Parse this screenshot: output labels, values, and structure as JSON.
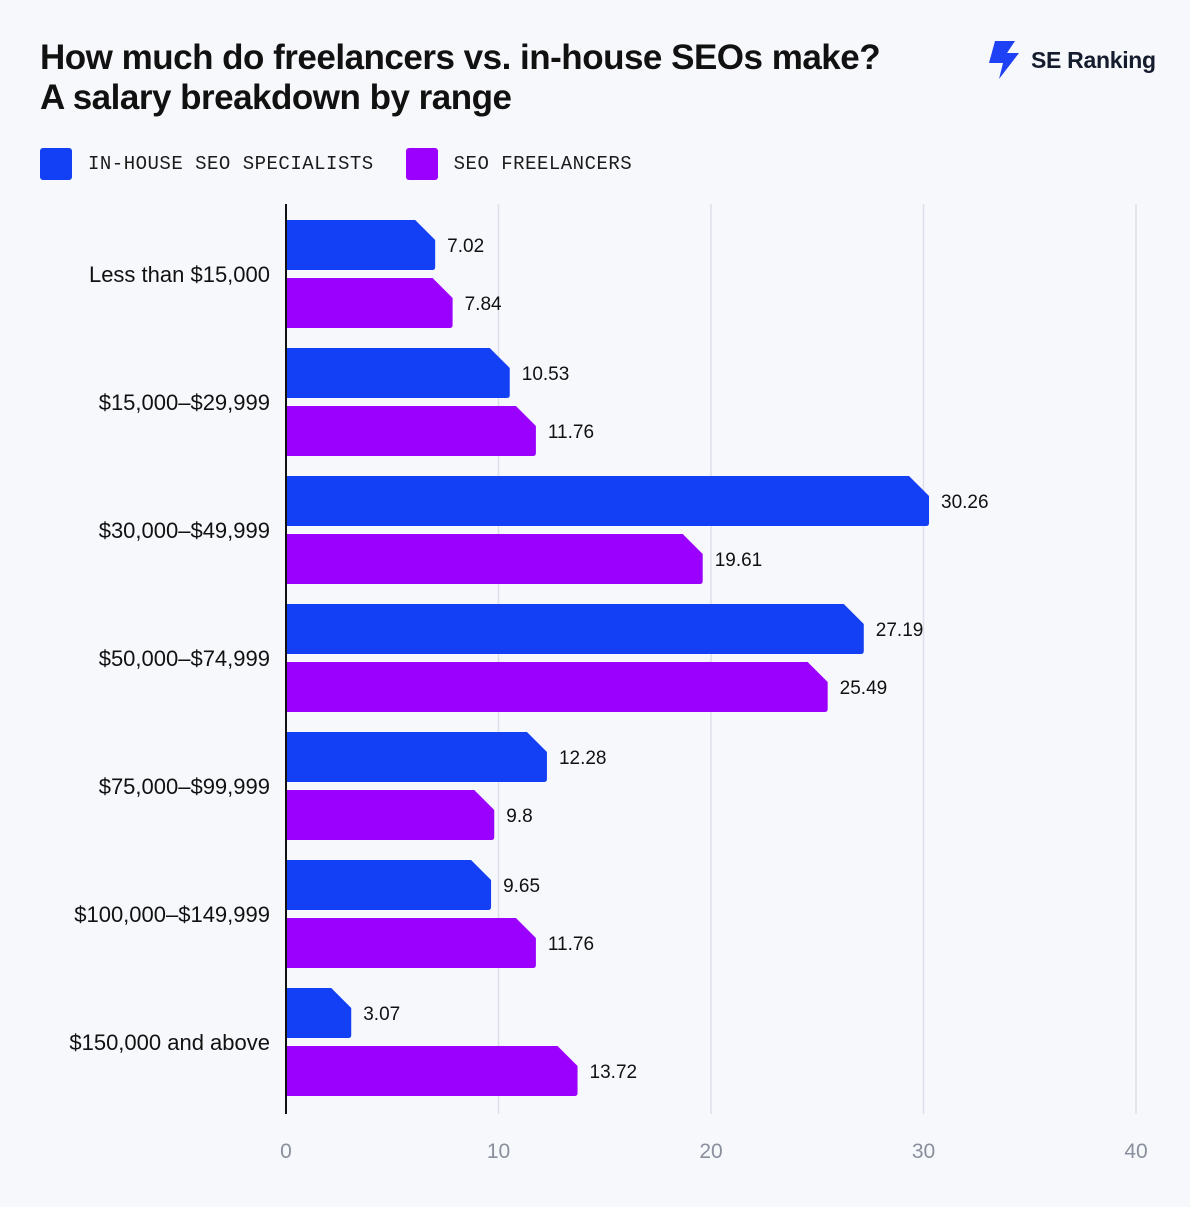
{
  "header": {
    "title_line1": "How much do freelancers vs. in-house SEOs make?",
    "title_line2": "A salary breakdown by range",
    "brand_name": "SE Ranking",
    "brand_color": "#1f41f5"
  },
  "legend": {
    "items": [
      {
        "label": "IN-HOUSE SEO SPECIALISTS",
        "color": "#1440f5"
      },
      {
        "label": "SEO FREELANCERS",
        "color": "#9b00ff"
      }
    ]
  },
  "chart_data": {
    "type": "bar",
    "orientation": "horizontal",
    "categories": [
      "Less than $15,000",
      "$15,000–$29,999",
      "$30,000–$49,999",
      "$50,000–$74,999",
      "$75,000–$99,999",
      "$100,000–$149,999",
      "$150,000 and above"
    ],
    "series": [
      {
        "name": "IN-HOUSE SEO SPECIALISTS",
        "color": "#1440f5",
        "values": [
          7.02,
          10.53,
          30.26,
          27.19,
          12.28,
          9.65,
          3.07
        ]
      },
      {
        "name": "SEO FREELANCERS",
        "color": "#9b00ff",
        "values": [
          7.84,
          11.76,
          19.61,
          25.49,
          9.8,
          11.76,
          13.72
        ]
      }
    ],
    "value_labels": [
      [
        "7.02",
        "10.53",
        "30.26",
        "27.19",
        "12.28",
        "9.65",
        "3.07"
      ],
      [
        "7.84",
        "11.76",
        "19.61",
        "25.49",
        "9.8",
        "11.76",
        "13.72"
      ]
    ],
    "xlim": [
      0,
      40
    ],
    "xticks": [
      0,
      10,
      20,
      30,
      40
    ],
    "grid": true,
    "legend_position": "top-left"
  }
}
